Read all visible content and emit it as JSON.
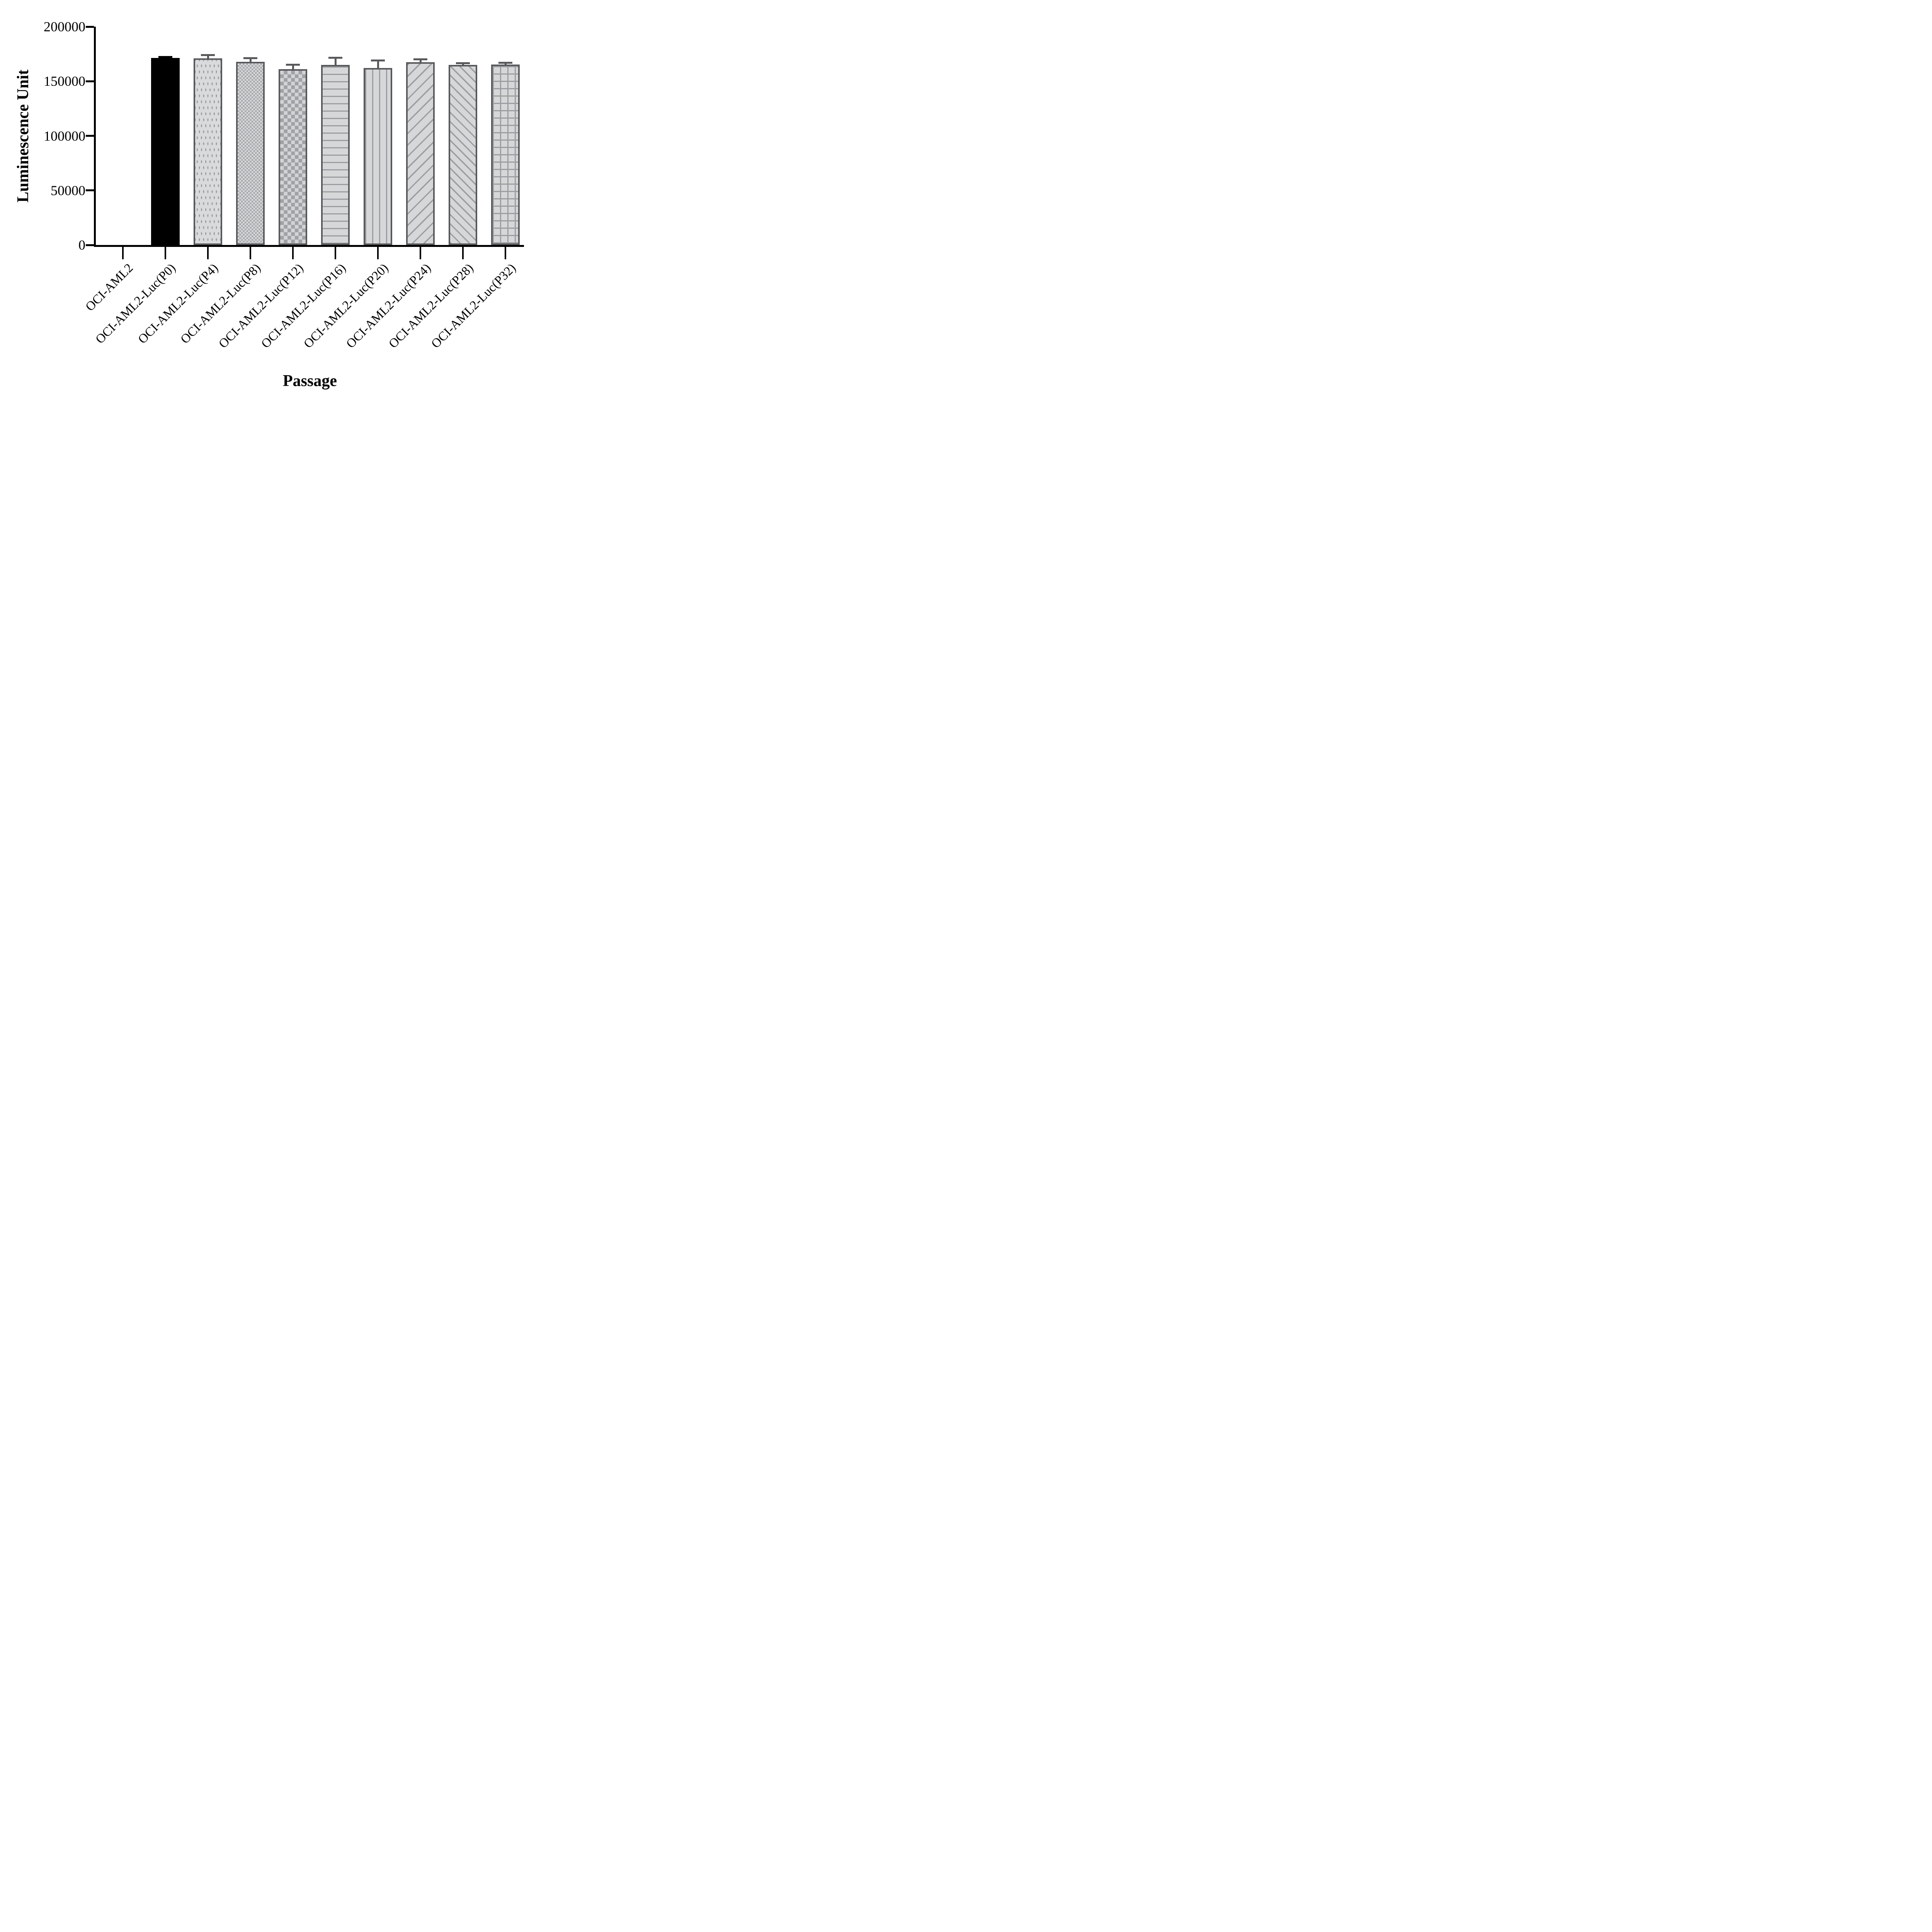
{
  "chart_data": {
    "type": "bar",
    "title": "",
    "xlabel": "Passage",
    "ylabel": "Luminescence Unit",
    "categories": [
      "OCI-AML2",
      "OCI-AML2-Luc(P0)",
      "OCI-AML2-Luc(P4)",
      "OCI-AML2-Luc(P8)",
      "OCI-AML2-Luc(P12)",
      "OCI-AML2-Luc(P16)",
      "OCI-AML2-Luc(P20)",
      "OCI-AML2-Luc(P24)",
      "OCI-AML2-Luc(P28)",
      "OCI-AML2-Luc(P32)"
    ],
    "values": [
      0,
      171300,
      170800,
      167900,
      161200,
      164800,
      162200,
      167400,
      164800,
      165400
    ],
    "errors_plus": [
      0,
      900,
      3100,
      3400,
      4100,
      6800,
      7000,
      2700,
      1700,
      1600
    ],
    "patterns": [
      "none",
      "solid-black",
      "dots",
      "checker-small",
      "checker-large",
      "hlines",
      "vlines",
      "diag-up",
      "diag-down",
      "grid"
    ],
    "ylim": [
      0,
      200000
    ],
    "ytick_values": [
      0,
      50000,
      100000,
      150000,
      200000
    ],
    "yticks": [
      "0",
      "50000",
      "100000",
      "150000",
      "200000"
    ],
    "grid": false,
    "legend_position": "none",
    "colors": {
      "axis": "#000000",
      "bar_outline": "#58595c",
      "fill_light": "#d6d7d8",
      "pattern_gray": "#9b9da0",
      "solid_bar": "#000000"
    }
  }
}
